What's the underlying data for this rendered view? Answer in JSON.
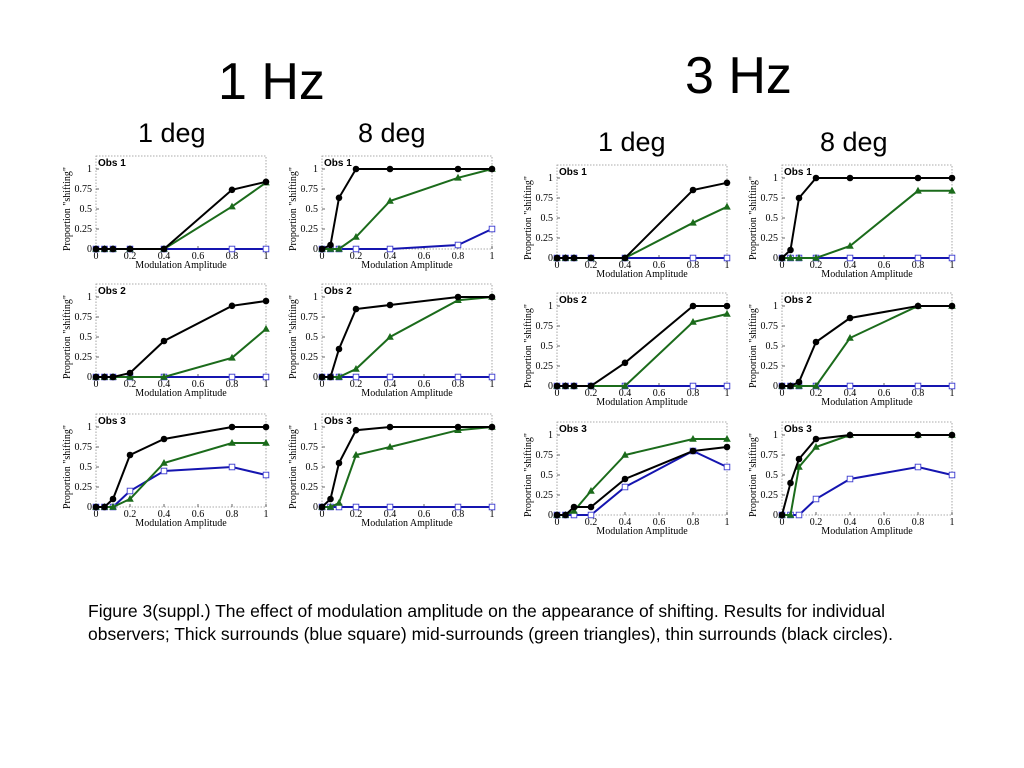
{
  "titles": {
    "hz1": "1 Hz",
    "hz3": "3 Hz",
    "col_1hz_1deg": "1 deg",
    "col_1hz_8deg": "8 deg",
    "col_3hz_1deg": "1 deg",
    "col_3hz_8deg": "8 deg"
  },
  "caption": "Figure 3(suppl.)   The effect of modulation amplitude on the appearance of shifting.  Results for individual observers; Thick surrounds (blue square) mid-surrounds (green triangles), thin surrounds (black circles).",
  "colors": {
    "thick": "#1515b0",
    "mid": "#1b6b1b",
    "thin": "#000000",
    "frame": "#909090"
  },
  "chart_data": [
    {
      "type": "line",
      "frequency": "1 Hz",
      "size": "1 deg",
      "panel_label": "Obs 1",
      "xlabel": "Modulation Amplitude",
      "ylabel": "Proportion \"shifting\"",
      "xlim": [
        0,
        1
      ],
      "ylim": [
        0,
        1
      ],
      "x": [
        0,
        0.05,
        0.1,
        0.2,
        0.4,
        0.8,
        1
      ],
      "series": [
        {
          "marker": "square",
          "color": "blue",
          "values": [
            0,
            0,
            0,
            0,
            0,
            0,
            0
          ]
        },
        {
          "marker": "triangle",
          "color": "green",
          "values": [
            0,
            0,
            0,
            0,
            0,
            0.53,
            0.83
          ]
        },
        {
          "marker": "circle",
          "color": "black",
          "values": [
            0,
            0,
            0,
            0,
            0,
            0.74,
            0.84
          ]
        }
      ]
    },
    {
      "type": "line",
      "frequency": "1 Hz",
      "size": "8 deg",
      "panel_label": "Obs 1",
      "xlabel": "Modulation Amplitude",
      "ylabel": "Proportion \"shifting\"",
      "xlim": [
        0,
        1
      ],
      "ylim": [
        0,
        1
      ],
      "x": [
        0,
        0.05,
        0.1,
        0.2,
        0.4,
        0.8,
        1
      ],
      "series": [
        {
          "marker": "square",
          "color": "blue",
          "values": [
            0,
            0,
            0,
            0,
            0,
            0.05,
            0.25
          ]
        },
        {
          "marker": "triangle",
          "color": "green",
          "values": [
            0,
            0,
            0,
            0.15,
            0.6,
            0.89,
            1
          ]
        },
        {
          "marker": "circle",
          "color": "black",
          "values": [
            0,
            0.05,
            0.64,
            1,
            1,
            1,
            1
          ]
        }
      ]
    },
    {
      "type": "line",
      "frequency": "3 Hz",
      "size": "1 deg",
      "panel_label": "Obs 1",
      "xlabel": "Modulation Amplitude",
      "ylabel": "Proportion \"shifting\"",
      "xlim": [
        0,
        1
      ],
      "ylim": [
        0,
        1
      ],
      "x": [
        0,
        0.05,
        0.1,
        0.2,
        0.4,
        0.8,
        1
      ],
      "series": [
        {
          "marker": "square",
          "color": "blue",
          "values": [
            0,
            0,
            0,
            0,
            0,
            0,
            0
          ]
        },
        {
          "marker": "triangle",
          "color": "green",
          "values": [
            0,
            0,
            0,
            0,
            0,
            0.44,
            0.64
          ]
        },
        {
          "marker": "circle",
          "color": "black",
          "values": [
            0,
            0,
            0,
            0,
            0,
            0.85,
            0.94
          ]
        }
      ]
    },
    {
      "type": "line",
      "frequency": "3 Hz",
      "size": "8 deg",
      "panel_label": "Obs 1",
      "xlabel": "Modulation Amplitude",
      "ylabel": "Proportion \"shifting\"",
      "xlim": [
        0,
        1
      ],
      "ylim": [
        0,
        1
      ],
      "x": [
        0,
        0.05,
        0.1,
        0.2,
        0.4,
        0.8,
        1
      ],
      "series": [
        {
          "marker": "square",
          "color": "blue",
          "values": [
            0,
            0,
            0,
            0,
            0,
            0,
            0
          ]
        },
        {
          "marker": "triangle",
          "color": "green",
          "values": [
            0,
            0,
            0,
            0,
            0.15,
            0.84,
            0.84
          ]
        },
        {
          "marker": "circle",
          "color": "black",
          "values": [
            0,
            0.1,
            0.75,
            1,
            1,
            1,
            1
          ]
        }
      ]
    },
    {
      "type": "line",
      "frequency": "1 Hz",
      "size": "1 deg",
      "panel_label": "Obs 2",
      "xlabel": "Modulation Amplitude",
      "ylabel": "Proportion \"shifting\"",
      "xlim": [
        0,
        1
      ],
      "ylim": [
        0,
        1
      ],
      "x": [
        0,
        0.05,
        0.1,
        0.2,
        0.4,
        0.8,
        1
      ],
      "series": [
        {
          "marker": "square",
          "color": "blue",
          "values": [
            0,
            0,
            0,
            0,
            0,
            0,
            0
          ]
        },
        {
          "marker": "triangle",
          "color": "green",
          "values": [
            0,
            0,
            0,
            0,
            0,
            0.24,
            0.6
          ]
        },
        {
          "marker": "circle",
          "color": "black",
          "values": [
            0,
            0,
            0,
            0.05,
            0.45,
            0.89,
            0.95
          ]
        }
      ]
    },
    {
      "type": "line",
      "frequency": "1 Hz",
      "size": "8 deg",
      "panel_label": "Obs 2",
      "xlabel": "Modulation Amplitude",
      "ylabel": "Proportion \"shifting\"",
      "xlim": [
        0,
        1
      ],
      "ylim": [
        0,
        1
      ],
      "x": [
        0,
        0.05,
        0.1,
        0.2,
        0.4,
        0.8,
        1
      ],
      "series": [
        {
          "marker": "square",
          "color": "blue",
          "values": [
            0,
            0,
            0,
            0,
            0,
            0,
            0
          ]
        },
        {
          "marker": "triangle",
          "color": "green",
          "values": [
            0,
            0,
            0,
            0.1,
            0.5,
            0.96,
            1
          ]
        },
        {
          "marker": "circle",
          "color": "black",
          "values": [
            0,
            0,
            0.35,
            0.85,
            0.9,
            1,
            1
          ]
        }
      ]
    },
    {
      "type": "line",
      "frequency": "3 Hz",
      "size": "1 deg",
      "panel_label": "Obs 2",
      "xlabel": "Modulation Amplitude",
      "ylabel": "Proportion \"shifting\"",
      "xlim": [
        0,
        1
      ],
      "ylim": [
        0,
        1
      ],
      "x": [
        0,
        0.05,
        0.1,
        0.2,
        0.4,
        0.8,
        1
      ],
      "series": [
        {
          "marker": "square",
          "color": "blue",
          "values": [
            0,
            0,
            0,
            0,
            0,
            0,
            0
          ]
        },
        {
          "marker": "triangle",
          "color": "green",
          "values": [
            0,
            0,
            0,
            0,
            0,
            0.8,
            0.9
          ]
        },
        {
          "marker": "circle",
          "color": "black",
          "values": [
            0,
            0,
            0,
            0,
            0.29,
            1,
            1
          ]
        }
      ]
    },
    {
      "type": "line",
      "frequency": "3 Hz",
      "size": "8 deg",
      "panel_label": "Obs 2",
      "xlabel": "Modulation Amplitude",
      "ylabel": "Proportion \"shifting\"",
      "xlim": [
        0,
        1
      ],
      "ylim": [
        0,
        1
      ],
      "x": [
        0,
        0.05,
        0.1,
        0.2,
        0.4,
        0.8,
        1
      ],
      "series": [
        {
          "marker": "square",
          "color": "blue",
          "values": [
            0,
            0,
            0,
            0,
            0,
            0,
            0
          ]
        },
        {
          "marker": "triangle",
          "color": "green",
          "values": [
            0,
            0,
            0,
            0,
            0.6,
            1,
            1
          ]
        },
        {
          "marker": "circle",
          "color": "black",
          "values": [
            0,
            0,
            0.05,
            0.55,
            0.85,
            1,
            1
          ]
        }
      ]
    },
    {
      "type": "line",
      "frequency": "1 Hz",
      "size": "1 deg",
      "panel_label": "Obs 3",
      "xlabel": "Modulation Amplitude",
      "ylabel": "Proportion \"shifting\"",
      "xlim": [
        0,
        1
      ],
      "ylim": [
        0,
        1
      ],
      "x": [
        0,
        0.05,
        0.1,
        0.2,
        0.4,
        0.8,
        1
      ],
      "series": [
        {
          "marker": "square",
          "color": "blue",
          "values": [
            0,
            0,
            0,
            0.2,
            0.45,
            0.5,
            0.4
          ]
        },
        {
          "marker": "triangle",
          "color": "green",
          "values": [
            0,
            0,
            0,
            0.1,
            0.55,
            0.8,
            0.8
          ]
        },
        {
          "marker": "circle",
          "color": "black",
          "values": [
            0,
            0,
            0.1,
            0.65,
            0.85,
            1,
            1
          ]
        }
      ]
    },
    {
      "type": "line",
      "frequency": "1 Hz",
      "size": "8 deg",
      "panel_label": "Obs 3",
      "xlabel": "Modulation Amplitude",
      "ylabel": "Proportion \"shifting\"",
      "xlim": [
        0,
        1
      ],
      "ylim": [
        0,
        1
      ],
      "x": [
        0,
        0.05,
        0.1,
        0.2,
        0.4,
        0.8,
        1
      ],
      "series": [
        {
          "marker": "square",
          "color": "blue",
          "values": [
            0,
            0,
            0,
            0,
            0,
            0,
            0
          ]
        },
        {
          "marker": "triangle",
          "color": "green",
          "values": [
            0,
            0,
            0.05,
            0.65,
            0.75,
            0.96,
            1
          ]
        },
        {
          "marker": "circle",
          "color": "black",
          "values": [
            0,
            0.1,
            0.55,
            0.96,
            1,
            1,
            1
          ]
        }
      ]
    },
    {
      "type": "line",
      "frequency": "3 Hz",
      "size": "1 deg",
      "panel_label": "Obs 3",
      "xlabel": "Modulation Amplitude",
      "ylabel": "Proportion \"shifting\"",
      "xlim": [
        0,
        1
      ],
      "ylim": [
        0,
        1
      ],
      "x": [
        0,
        0.05,
        0.1,
        0.2,
        0.4,
        0.8,
        1
      ],
      "series": [
        {
          "marker": "square",
          "color": "blue",
          "values": [
            0,
            0,
            0,
            0,
            0.35,
            0.8,
            0.6
          ]
        },
        {
          "marker": "triangle",
          "color": "green",
          "values": [
            0,
            0,
            0.05,
            0.3,
            0.75,
            0.95,
            0.95
          ]
        },
        {
          "marker": "circle",
          "color": "black",
          "values": [
            0,
            0,
            0.1,
            0.1,
            0.45,
            0.8,
            0.85
          ]
        }
      ]
    },
    {
      "type": "line",
      "frequency": "3 Hz",
      "size": "8 deg",
      "panel_label": "Obs 3",
      "xlabel": "Modulation Amplitude",
      "ylabel": "Proportion \"shifting\"",
      "xlim": [
        0,
        1
      ],
      "ylim": [
        0,
        1
      ],
      "x": [
        0,
        0.05,
        0.1,
        0.2,
        0.4,
        0.8,
        1
      ],
      "series": [
        {
          "marker": "square",
          "color": "blue",
          "values": [
            0,
            0,
            0,
            0.2,
            0.45,
            0.6,
            0.5
          ]
        },
        {
          "marker": "triangle",
          "color": "green",
          "values": [
            0,
            0,
            0.6,
            0.85,
            1,
            1,
            1
          ]
        },
        {
          "marker": "circle",
          "color": "black",
          "values": [
            0,
            0.4,
            0.7,
            0.95,
            1,
            1,
            1
          ]
        }
      ]
    }
  ]
}
